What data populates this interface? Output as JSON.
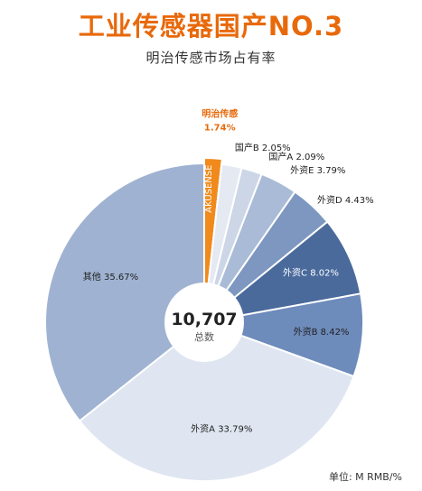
{
  "header": {
    "title": "工业传感器国产NO.3",
    "subtitle": "明治传感市场占有率"
  },
  "footer": {
    "unit": "单位: M RMB/%"
  },
  "chart_data": {
    "type": "pie",
    "style": "donut",
    "center_value": "10,707",
    "center_label": "总数",
    "unit": "M RMB/%",
    "slices": [
      {
        "name": "明治传感",
        "value": 1.74,
        "label": "1.74%",
        "inner_label": "AKUSENSE",
        "color": "#f08a1c",
        "highlight": true
      },
      {
        "name": "国产B",
        "value": 2.05,
        "label": "国产B 2.05%",
        "color": "#e4e9f2"
      },
      {
        "name": "国产A",
        "value": 2.09,
        "label": "国产A 2.09%",
        "color": "#ccd6e6"
      },
      {
        "name": "外资E",
        "value": 3.79,
        "label": "外资E 3.79%",
        "color": "#a9bbd6"
      },
      {
        "name": "外资D",
        "value": 4.43,
        "label": "外资D 4.43%",
        "color": "#7d97c0"
      },
      {
        "name": "外资C",
        "value": 8.02,
        "label": "外资C 8.02%",
        "color": "#4a6a9c"
      },
      {
        "name": "外资B",
        "value": 8.42,
        "label": "外资B 8.42%",
        "color": "#6d8bbb"
      },
      {
        "name": "外资A",
        "value": 33.79,
        "label": "外资A 33.79%",
        "color": "#dfe6f1"
      },
      {
        "name": "其他",
        "value": 35.67,
        "label": "其他 35.67%",
        "color": "#9fb2d1"
      }
    ]
  }
}
